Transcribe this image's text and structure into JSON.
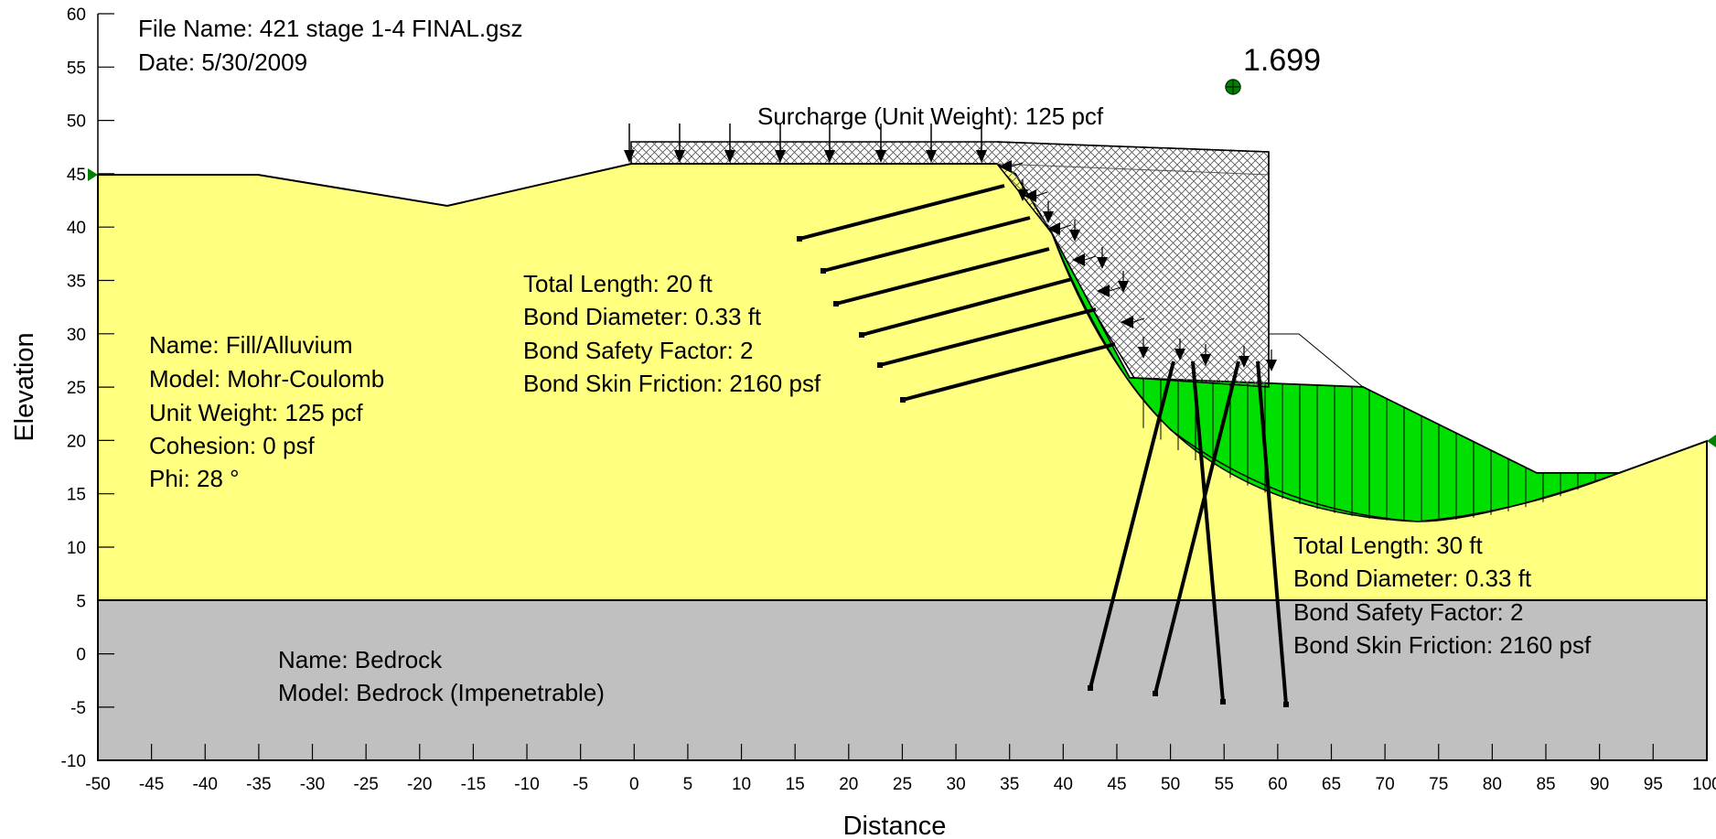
{
  "header": {
    "file_name": "File Name: 421 stage 1-4 FINAL.gsz",
    "date": "Date: 5/30/2009"
  },
  "factor_of_safety": "1.699",
  "surcharge_label": "Surcharge (Unit Weight): 125 pcf",
  "axes": {
    "x_title": "Distance",
    "y_title": "Elevation",
    "x_ticks": [
      "-50",
      "-45",
      "-40",
      "-35",
      "-30",
      "-25",
      "-20",
      "-15",
      "-10",
      "-5",
      "0",
      "5",
      "10",
      "15",
      "20",
      "25",
      "30",
      "35",
      "40",
      "45",
      "50",
      "55",
      "60",
      "65",
      "70",
      "75",
      "80",
      "85",
      "90",
      "95",
      "100"
    ],
    "y_ticks": [
      "60",
      "55",
      "50",
      "45",
      "40",
      "35",
      "30",
      "25",
      "20",
      "15",
      "10",
      "5",
      "0",
      "-5",
      "-10"
    ]
  },
  "materials": {
    "fill": {
      "lines": [
        "Name: Fill/Alluvium",
        "Model: Mohr-Coulomb",
        "Unit Weight: 125 pcf",
        "Cohesion: 0 psf",
        "Phi: 28 °"
      ],
      "color": "#ffff80"
    },
    "bedrock": {
      "lines": [
        "Name: Bedrock",
        "Model: Bedrock (Impenetrable)"
      ],
      "color": "#c0c0c0"
    }
  },
  "anchors_upper": {
    "lines": [
      "Total Length:  20 ft",
      "Bond Diameter: 0.33 ft",
      "Bond Safety Factor: 2",
      "Bond Skin Friction: 2160 psf"
    ]
  },
  "anchors_lower": {
    "lines": [
      "Total Length:  30 ft",
      "Bond Diameter: 0.33 ft",
      "Bond Safety Factor: 2",
      "Bond Skin Friction: 2160 psf"
    ]
  },
  "colors": {
    "slip_mass": "#00e000",
    "surcharge_hatch": "#555555"
  }
}
